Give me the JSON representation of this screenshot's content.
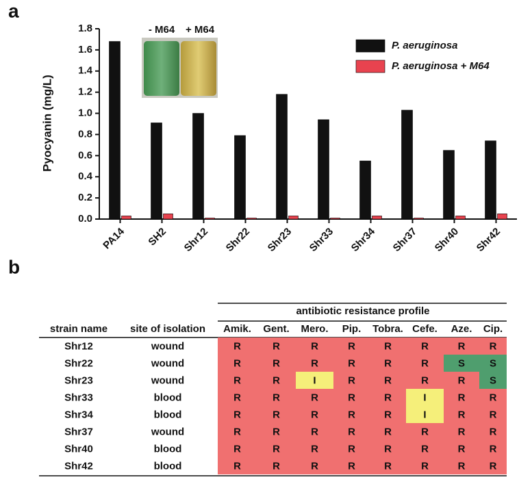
{
  "panel_labels": [
    "a",
    "b"
  ],
  "inset_labels": [
    "- M64",
    "+ M64"
  ],
  "chart_data": {
    "type": "bar",
    "y_label": "Pyocyanin (mg/L)",
    "categories": [
      "PA14",
      "SH2",
      "Shr12",
      "Shr22",
      "Shr23",
      "Shr33",
      "Shr34",
      "Shr37",
      "Shr40",
      "Shr42"
    ],
    "series": [
      {
        "name": "P. aeruginosa",
        "color": "#111111",
        "values": [
          1.68,
          0.91,
          1.0,
          0.79,
          1.18,
          0.94,
          0.55,
          1.03,
          0.65,
          0.74
        ]
      },
      {
        "name": "P. aeruginosa + M64",
        "color": "#e8434f",
        "values": [
          0.03,
          0.05,
          0.01,
          0.01,
          0.03,
          0.01,
          0.03,
          0.01,
          0.03,
          0.05
        ]
      }
    ],
    "ylim": [
      0,
      1.8
    ],
    "yticks": [
      {
        "value": 0,
        "label": "0.0"
      },
      0.2,
      0.4,
      0.6,
      0.8,
      {
        "value": 1,
        "label": "1.0"
      },
      1.2,
      1.4,
      1.6,
      1.8
    ],
    "legend": "upper right",
    "grid": false
  },
  "table": {
    "group_header": "antibiotic resistance profile",
    "columns": [
      "strain name",
      "site of isolation",
      "Amik.",
      "Gent.",
      "Mero.",
      "Pip.",
      "Tobra.",
      "Cefe.",
      "Aze.",
      "Cip."
    ],
    "rows": [
      [
        "Shr12",
        "wound",
        "R",
        "R",
        "R",
        "R",
        "R",
        "R",
        "R",
        "R"
      ],
      [
        "Shr22",
        "wound",
        "R",
        "R",
        "R",
        "R",
        "R",
        "R",
        "S",
        "S"
      ],
      [
        "Shr23",
        "wound",
        "R",
        "R",
        "I",
        "R",
        "R",
        "R",
        "R",
        "S"
      ],
      [
        "Shr33",
        "blood",
        "R",
        "R",
        "R",
        "R",
        "R",
        "I",
        "R",
        "R"
      ],
      [
        "Shr34",
        "blood",
        "R",
        "R",
        "R",
        "R",
        "R",
        "I",
        "R",
        "R"
      ],
      [
        "Shr37",
        "wound",
        "R",
        "R",
        "R",
        "R",
        "R",
        "R",
        "R",
        "R"
      ],
      [
        "Shr40",
        "blood",
        "R",
        "R",
        "R",
        "R",
        "R",
        "R",
        "R",
        "R"
      ],
      [
        "Shr42",
        "blood",
        "R",
        "R",
        "R",
        "R",
        "R",
        "R",
        "R",
        "R"
      ]
    ],
    "cell_colors": {
      "R": "#f07070",
      "S": "#4f9e6e",
      "I": "#f5ef7a"
    }
  }
}
